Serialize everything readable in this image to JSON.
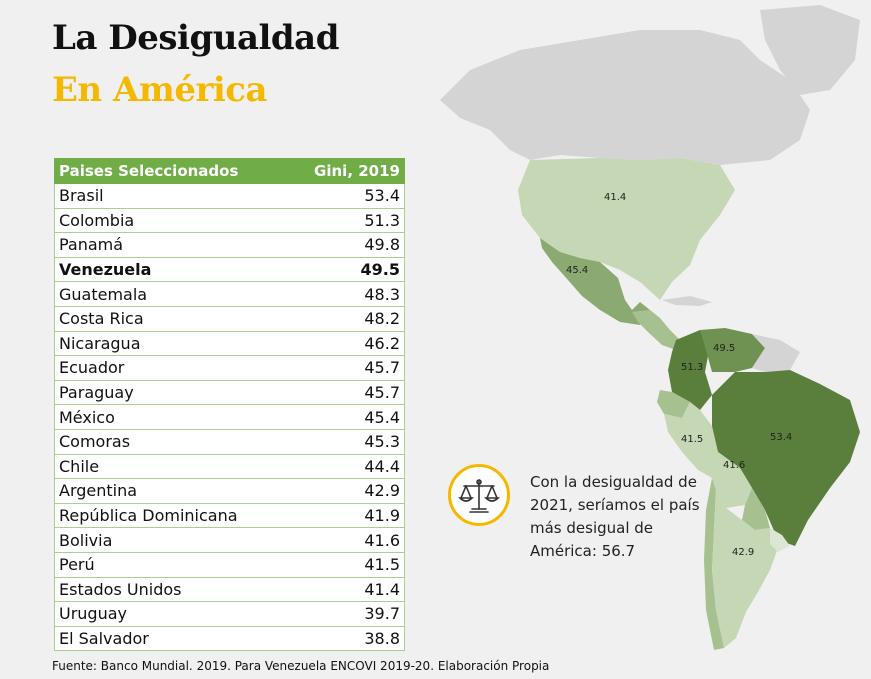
{
  "title": "La Desigualdad",
  "subtitle": "En América",
  "chart_data": {
    "type": "table",
    "columns": [
      "Paises Seleccionados",
      "Gini, 2019"
    ],
    "rows": [
      {
        "country": "Brasil",
        "value": "53.4"
      },
      {
        "country": "Colombia",
        "value": "51.3"
      },
      {
        "country": "Panamá",
        "value": "49.8"
      },
      {
        "country": "Venezuela",
        "value": "49.5",
        "bold": true
      },
      {
        "country": "Guatemala",
        "value": "48.3"
      },
      {
        "country": "Costa Rica",
        "value": "48.2"
      },
      {
        "country": "Nicaragua",
        "value": "46.2"
      },
      {
        "country": "Ecuador",
        "value": "45.7"
      },
      {
        "country": "Paraguay",
        "value": "45.7"
      },
      {
        "country": "México",
        "value": "45.4"
      },
      {
        "country": "Comoras",
        "value": "45.3"
      },
      {
        "country": "Chile",
        "value": "44.4"
      },
      {
        "country": "Argentina",
        "value": "42.9"
      },
      {
        "country": "República Dominicana",
        "value": "41.9"
      },
      {
        "country": "Bolivia",
        "value": "41.6"
      },
      {
        "country": "Perú",
        "value": "41.5"
      },
      {
        "country": "Estados Unidos",
        "value": "41.4"
      },
      {
        "country": "Uruguay",
        "value": "39.7"
      },
      {
        "country": "El Salvador",
        "value": "38.8"
      }
    ]
  },
  "map_labels": {
    "usa": "41.4",
    "mexico": "45.4",
    "colombia": "51.3",
    "venezuela": "49.5",
    "peru": "41.5",
    "brasil": "53.4",
    "bolivia": "41.6",
    "argentina": "42.9"
  },
  "colors": {
    "accent": "#f5b800",
    "header_green": "#70ad47",
    "darkest": "#5a7f3c",
    "dark": "#8aaa72",
    "light": "#c6d7b6",
    "faint": "#dde6d4",
    "grey": "#d4d4d4"
  },
  "callout": {
    "icon": "scales-icon",
    "text": "Con la desigualdad de 2021, seríamos el país más desigual de América: 56.7"
  },
  "footer": "Fuente: Banco Mundial. 2019. Para Venezuela ENCOVI 2019-20. Elaboración Propia"
}
